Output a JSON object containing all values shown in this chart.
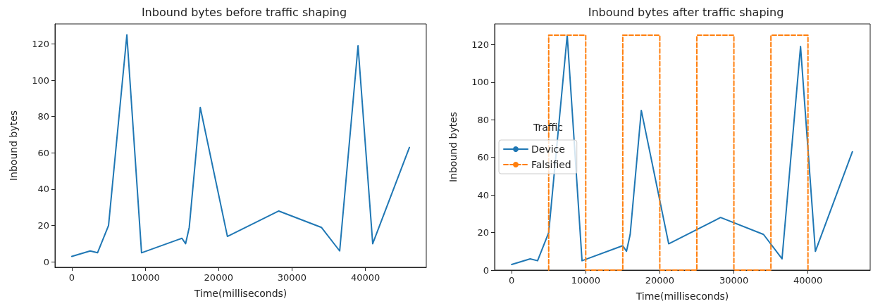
{
  "chart_data": [
    {
      "type": "line",
      "title": "Inbound bytes before traffic shaping",
      "xlabel": "Time(milliseconds)",
      "ylabel": "Inbound bytes",
      "x": [
        0,
        2500,
        3500,
        5000,
        7500,
        9500,
        15000,
        15500,
        16000,
        17500,
        21200,
        28200,
        34000,
        36500,
        39000,
        41000,
        46000
      ],
      "series": [
        {
          "color": "#1f77b4",
          "values": [
            3,
            6,
            5,
            20,
            125,
            5,
            13,
            10,
            19,
            85,
            14,
            28,
            19,
            6,
            119,
            10,
            63
          ]
        }
      ],
      "xlim": [
        -2300,
        48300
      ],
      "xticks": [
        0,
        10000,
        20000,
        30000,
        40000
      ],
      "ylim": [
        -3,
        131
      ],
      "yticks": [
        0,
        20,
        40,
        60,
        80,
        100,
        120
      ],
      "grid": false,
      "legend": false,
      "marker": "none",
      "line_style": "solid"
    },
    {
      "type": "line",
      "title": "Inbound bytes after traffic shaping",
      "xlabel": "Time(milliseconds)",
      "ylabel": "Inbound bytes",
      "legend_title": "Traffic",
      "series": [
        {
          "name": "Device",
          "color": "#1f77b4",
          "line_style": "solid",
          "x": [
            0,
            2500,
            3500,
            5000,
            7500,
            9500,
            15000,
            15500,
            16000,
            17500,
            21200,
            28200,
            34000,
            36500,
            39000,
            41000,
            46000
          ],
          "values": [
            3,
            6,
            5,
            20,
            125,
            5,
            13,
            10,
            19,
            85,
            14,
            28,
            19,
            6,
            119,
            10,
            63
          ]
        },
        {
          "name": "Falsified",
          "color": "#ff7f0e",
          "line_style": "dashed",
          "x": [
            5000,
            5000,
            10000,
            10000,
            15000,
            15000,
            20000,
            20000,
            25000,
            25000,
            30000,
            30000,
            35000,
            35000,
            40000,
            40000
          ],
          "values": [
            0,
            125,
            125,
            0,
            0,
            125,
            125,
            0,
            0,
            125,
            125,
            0,
            0,
            125,
            125,
            0
          ]
        }
      ],
      "xlim": [
        -2300,
        48400
      ],
      "xticks": [
        0,
        10000,
        20000,
        30000,
        40000
      ],
      "ylim": [
        0,
        131
      ],
      "yticks": [
        0,
        20,
        40,
        60,
        80,
        100,
        120
      ],
      "grid": false,
      "legend": "center left",
      "marker": "none"
    }
  ]
}
